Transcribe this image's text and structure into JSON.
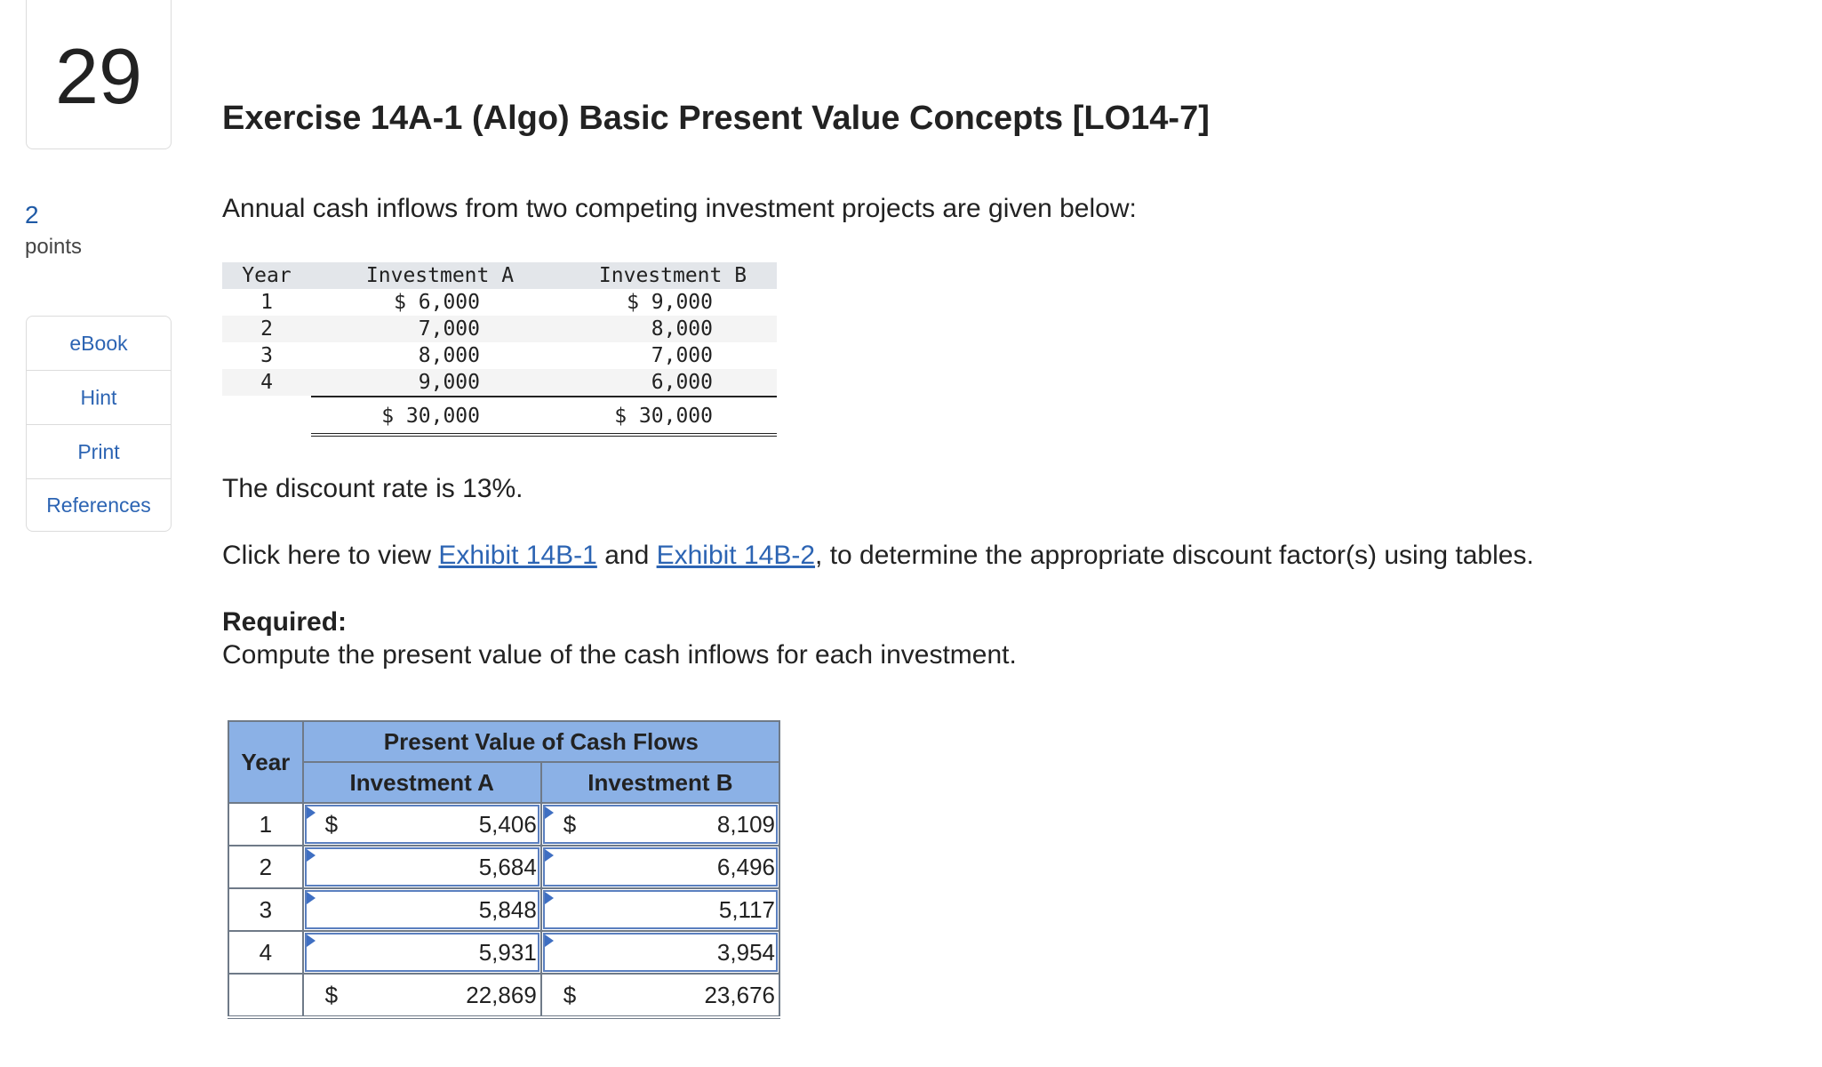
{
  "question": {
    "number": "29",
    "points_value": "2",
    "points_label": "points"
  },
  "tools": [
    {
      "label": "eBook"
    },
    {
      "label": "Hint"
    },
    {
      "label": "Print"
    },
    {
      "label": "References"
    }
  ],
  "title": "Exercise 14A-1 (Algo) Basic Present Value Concepts [LO14-7]",
  "intro": "Annual cash inflows from two competing investment projects are given below:",
  "given_table": {
    "headers": {
      "year": "Year",
      "a": "Investment A",
      "b": "Investment B"
    },
    "rows": [
      {
        "year": "1",
        "a": "$ 6,000",
        "b": "$ 9,000"
      },
      {
        "year": "2",
        "a": "7,000",
        "b": "8,000"
      },
      {
        "year": "3",
        "a": "8,000",
        "b": "7,000"
      },
      {
        "year": "4",
        "a": "9,000",
        "b": "6,000"
      }
    ],
    "total": {
      "a": "$ 30,000",
      "b": "$ 30,000"
    }
  },
  "discount_text": "The discount rate is 13%.",
  "exhibit": {
    "prefix": "Click here to view ",
    "link1": "Exhibit 14B-1",
    "middle": " and ",
    "link2": "Exhibit 14B-2",
    "suffix": ", to determine the appropriate discount factor(s) using tables."
  },
  "required": {
    "heading": "Required:",
    "text": "Compute the present value of the cash inflows for each investment."
  },
  "answer_table": {
    "year_header": "Year",
    "group_header": "Present Value of Cash Flows",
    "col_a": "Investment A",
    "col_b": "Investment B",
    "currency": "$",
    "rows": [
      {
        "year": "1",
        "a": "5,406",
        "b": "8,109"
      },
      {
        "year": "2",
        "a": "5,684",
        "b": "6,496"
      },
      {
        "year": "3",
        "a": "5,848",
        "b": "5,117"
      },
      {
        "year": "4",
        "a": "5,931",
        "b": "3,954"
      }
    ],
    "total": {
      "a": "22,869",
      "b": "23,676"
    }
  }
}
